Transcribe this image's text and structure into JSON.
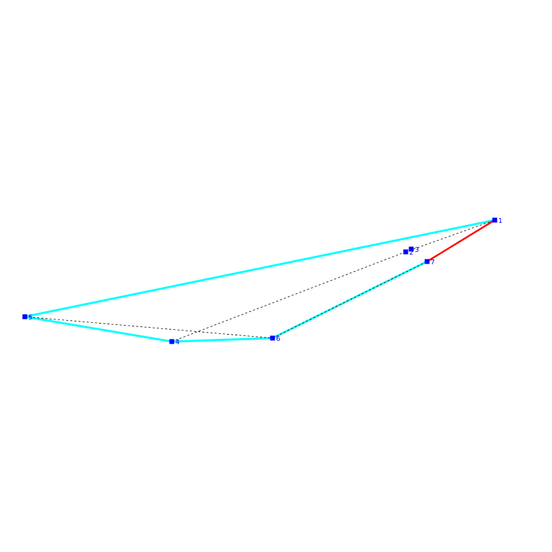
{
  "diagram": {
    "points": [
      {
        "id": "1",
        "label": "1"
      },
      {
        "id": "2",
        "label": "2"
      },
      {
        "id": "3",
        "label": "3"
      },
      {
        "id": "4",
        "label": "4"
      },
      {
        "id": "5",
        "label": "5"
      },
      {
        "id": "6",
        "label": "6"
      },
      {
        "id": "7",
        "label": "7"
      }
    ],
    "hull_edges": [
      [
        "1",
        "5"
      ],
      [
        "5",
        "4"
      ],
      [
        "4",
        "6"
      ],
      [
        "6",
        "7"
      ]
    ],
    "highlight_edges": [
      [
        "7",
        "1"
      ]
    ],
    "dashed_edges": [
      [
        "5",
        "6"
      ],
      [
        "4",
        "2"
      ],
      [
        "2",
        "1"
      ],
      [
        "6",
        "7"
      ]
    ],
    "colors": {
      "hull": "#00ffff",
      "highlight": "#ff0000",
      "dashed": "#000000",
      "node": "#0000ff",
      "label": "#0000ff",
      "background": "#ffffff"
    }
  }
}
